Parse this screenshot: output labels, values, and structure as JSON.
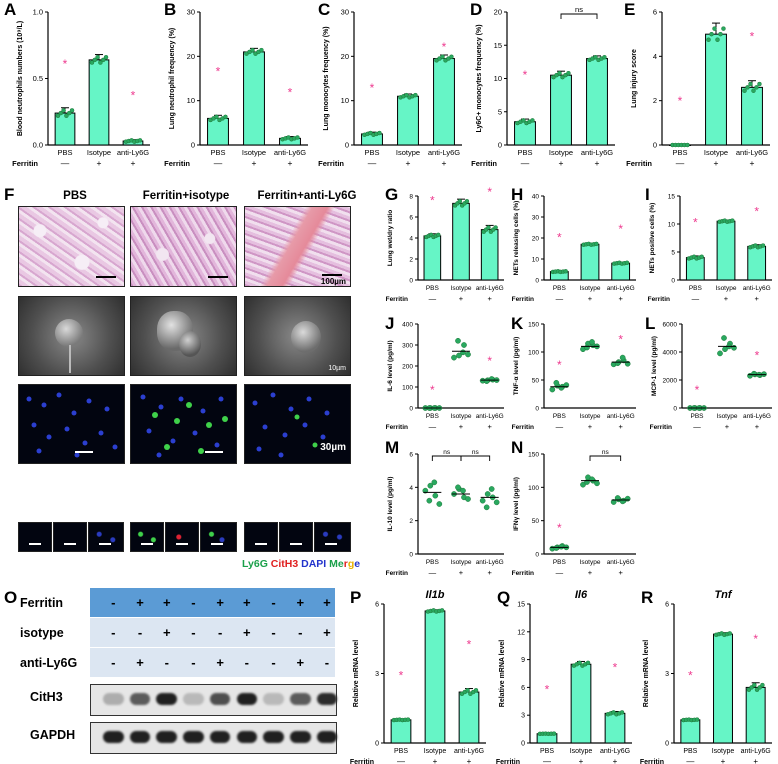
{
  "colors": {
    "bar": "#66f5c6",
    "dot": "#29a85f",
    "dotDark": "#1f7a3c",
    "star": "#ee3a8f",
    "ly6g": "#1aa04a",
    "cith3": "#e02020",
    "dapi": "#2233cc",
    "merge_m": "#e02020",
    "merge_e": "#e8b000",
    "merge_r": "#1aa04a",
    "merge_g": "#2233cc",
    "merge_e2": "#e8b000",
    "table_hdr": "#5b9bd5",
    "table_row": "#dce6f2"
  },
  "axis": {
    "ferritin_label": "Ferritin",
    "cats": [
      "PBS",
      "Isotype",
      "anti-Ly6G"
    ],
    "signs": [
      "—",
      "+",
      "+"
    ]
  },
  "panel_letters": [
    "A",
    "B",
    "C",
    "D",
    "E",
    "F",
    "G",
    "H",
    "I",
    "J",
    "K",
    "L",
    "M",
    "N",
    "O",
    "P",
    "Q",
    "R"
  ],
  "chart_data": [
    {
      "id": "A",
      "type": "bar",
      "ylabel": "Blood neutrophils numbers (10⁹/L)",
      "ylim": [
        0,
        1.0
      ],
      "yticks": [
        "0.0",
        "0.5",
        "1.0"
      ],
      "ytickv": [
        0,
        0.5,
        1.0
      ],
      "values": [
        0.24,
        0.64,
        0.03
      ],
      "err": [
        0.04,
        0.04,
        0.01
      ],
      "stars": [
        true,
        false,
        true
      ],
      "ns": []
    },
    {
      "id": "B",
      "type": "bar",
      "ylabel": "Lung neutrophil frequency (%)",
      "ylim": [
        0,
        30
      ],
      "yticks": [
        "0",
        "10",
        "20",
        "30"
      ],
      "ytickv": [
        0,
        10,
        20,
        30
      ],
      "values": [
        6,
        21,
        1.5
      ],
      "err": [
        0.7,
        0.8,
        0.4
      ],
      "stars": [
        true,
        false,
        true
      ],
      "ns": []
    },
    {
      "id": "C",
      "type": "bar",
      "ylabel": "Lung monocytes frequency (%)",
      "ylim": [
        0,
        30
      ],
      "yticks": [
        "0",
        "10",
        "20",
        "30"
      ],
      "ytickv": [
        0,
        10,
        20,
        30
      ],
      "values": [
        2.5,
        11,
        19.5
      ],
      "err": [
        0.4,
        0.5,
        0.8
      ],
      "stars": [
        true,
        false,
        true
      ],
      "ns": []
    },
    {
      "id": "D",
      "type": "bar",
      "ylabel": "Ly6C+ monocytes frequency (%)",
      "ylim": [
        0,
        20
      ],
      "yticks": [
        "0",
        "5",
        "10",
        "15",
        "20"
      ],
      "ytickv": [
        0,
        5,
        10,
        15,
        20
      ],
      "values": [
        3.5,
        10.5,
        13
      ],
      "err": [
        0.4,
        0.6,
        0.4
      ],
      "stars": [
        true,
        false,
        false
      ],
      "ns": [
        [
          1,
          2,
          "ns"
        ]
      ]
    },
    {
      "id": "E",
      "type": "bar",
      "ylabel": "Lung injury score",
      "ylim": [
        0,
        6
      ],
      "yticks": [
        "0",
        "2",
        "4",
        "6"
      ],
      "ytickv": [
        0,
        2,
        4,
        6
      ],
      "values": [
        0,
        5,
        2.6
      ],
      "err": [
        0,
        0.5,
        0.3
      ],
      "stars": [
        true,
        false,
        true
      ],
      "ns": []
    },
    {
      "id": "G",
      "type": "bar",
      "ylabel": "Lung wet/dry ratio",
      "ylim": [
        0,
        8
      ],
      "yticks": [
        "0",
        "2",
        "4",
        "6",
        "8"
      ],
      "ytickv": [
        0,
        2,
        4,
        6,
        8
      ],
      "values": [
        4.2,
        7.3,
        4.8
      ],
      "err": [
        0.2,
        0.4,
        0.4
      ],
      "stars": [
        true,
        false,
        true
      ],
      "ns": []
    },
    {
      "id": "H",
      "type": "bar",
      "ylabel": "NETs releasing cells (%)",
      "ylim": [
        0,
        40
      ],
      "yticks": [
        "0",
        "10",
        "20",
        "30",
        "40"
      ],
      "ytickv": [
        0,
        10,
        20,
        30,
        40
      ],
      "values": [
        4,
        17,
        8
      ],
      "err": [
        0.3,
        0.4,
        0.4
      ],
      "stars": [
        true,
        false,
        true
      ],
      "ns": []
    },
    {
      "id": "I",
      "type": "bar",
      "ylabel": "NETs positive cells (%)",
      "ylim": [
        0,
        15
      ],
      "yticks": [
        "0",
        "5",
        "10",
        "15"
      ],
      "ytickv": [
        0,
        5,
        10,
        15
      ],
      "values": [
        4,
        10.5,
        6
      ],
      "err": [
        0.3,
        0.2,
        0.3
      ],
      "stars": [
        true,
        false,
        true
      ],
      "ns": []
    },
    {
      "id": "J",
      "type": "dot",
      "ylabel": "IL-6 level (pg/ml)",
      "ylim": [
        0,
        400
      ],
      "yticks": [
        "0",
        "100",
        "200",
        "300",
        "400"
      ],
      "ytickv": [
        0,
        100,
        200,
        300,
        400
      ],
      "points": [
        [
          0,
          0,
          0,
          0,
          0,
          0
        ],
        [
          240,
          250,
          300,
          320,
          265,
          255
        ],
        [
          130,
          132,
          135,
          128,
          138,
          133
        ]
      ],
      "means": [
        0,
        270,
        133
      ],
      "stars": [
        true,
        false,
        true
      ],
      "ns": []
    },
    {
      "id": "K",
      "type": "dot",
      "ylabel": "TNF-α level (pg/ml)",
      "ylim": [
        0,
        150
      ],
      "yticks": [
        "0",
        "50",
        "100",
        "150"
      ],
      "ytickv": [
        0,
        50,
        100,
        150
      ],
      "points": [
        [
          33,
          40,
          38,
          45,
          36,
          41
        ],
        [
          105,
          115,
          112,
          108,
          118,
          110
        ],
        [
          78,
          82,
          85,
          80,
          90,
          79
        ]
      ],
      "means": [
        38,
        110,
        82
      ],
      "stars": [
        true,
        false,
        true
      ],
      "ns": []
    },
    {
      "id": "L",
      "type": "dot",
      "ylabel": "MCP-1 level (pg/ml)",
      "ylim": [
        0,
        6000
      ],
      "yticks": [
        "0",
        "2000",
        "4000",
        "6000"
      ],
      "ytickv": [
        0,
        2000,
        4000,
        6000
      ],
      "points": [
        [
          0,
          0,
          0,
          0,
          0,
          0
        ],
        [
          3900,
          4200,
          4600,
          5000,
          4400,
          4300
        ],
        [
          2300,
          2400,
          2350,
          2450,
          2380,
          2420
        ]
      ],
      "means": [
        0,
        4400,
        2380
      ],
      "stars": [
        true,
        false,
        true
      ],
      "ns": []
    },
    {
      "id": "M",
      "type": "dot",
      "ylabel": "IL-10 level (pg/ml)",
      "ylim": [
        0,
        6
      ],
      "yticks": [
        "0",
        "2",
        "4",
        "6"
      ],
      "ytickv": [
        0,
        2,
        4,
        6
      ],
      "points": [
        [
          3.8,
          4.1,
          3.5,
          3.2,
          4.3,
          3.0
        ],
        [
          3.6,
          3.9,
          3.4,
          4.0,
          3.8,
          3.3
        ],
        [
          3.2,
          3.6,
          3.4,
          2.8,
          3.9,
          3.1
        ]
      ],
      "means": [
        3.7,
        3.6,
        3.4
      ],
      "stars": [
        false,
        false,
        false
      ],
      "ns": [
        [
          0,
          1,
          "ns"
        ],
        [
          1,
          2,
          "ns"
        ]
      ]
    },
    {
      "id": "N",
      "type": "dot",
      "ylabel": "IFNγ level (pg/ml)",
      "ylim": [
        0,
        150
      ],
      "yticks": [
        "0",
        "50",
        "100",
        "150"
      ],
      "ytickv": [
        0,
        50,
        100,
        150
      ],
      "points": [
        [
          8,
          10,
          12,
          9,
          11,
          10
        ],
        [
          104,
          115,
          110,
          108,
          112,
          106
        ],
        [
          78,
          82,
          80,
          84,
          79,
          83
        ]
      ],
      "means": [
        10,
        110,
        81
      ],
      "stars": [
        true,
        false,
        false
      ],
      "ns": [
        [
          1,
          2,
          "ns"
        ]
      ]
    },
    {
      "id": "P",
      "type": "bar",
      "title": "Il1b",
      "ylabel": "Relative mRNA level",
      "ylim": [
        0,
        6
      ],
      "yticks": [
        "0",
        "3",
        "6"
      ],
      "ytickv": [
        0,
        3,
        6
      ],
      "values": [
        1,
        5.7,
        2.2
      ],
      "err": [
        0.02,
        0.05,
        0.15
      ],
      "stars": [
        true,
        false,
        true
      ],
      "ns": []
    },
    {
      "id": "Q",
      "type": "bar",
      "title": "Il6",
      "ylabel": "Relative mRNA level",
      "ylim": [
        0,
        15
      ],
      "yticks": [
        "0",
        "3",
        "6",
        "9",
        "12",
        "15"
      ],
      "ytickv": [
        0,
        3,
        6,
        9,
        12,
        15
      ],
      "values": [
        1,
        8.5,
        3.2
      ],
      "err": [
        0.02,
        0.3,
        0.2
      ],
      "stars": [
        true,
        false,
        true
      ],
      "ns": []
    },
    {
      "id": "R",
      "type": "bar",
      "title": "Tnf",
      "ylabel": "Relative mRNA level",
      "ylim": [
        0,
        6
      ],
      "yticks": [
        "0",
        "3",
        "6"
      ],
      "ytickv": [
        0,
        3,
        6
      ],
      "values": [
        1,
        4.7,
        2.4
      ],
      "err": [
        0.02,
        0.06,
        0.2
      ],
      "stars": [
        true,
        false,
        true
      ],
      "ns": []
    }
  ],
  "micro": {
    "headers": [
      "PBS",
      "Ferritin+isotype",
      "Ferritin+anti-Ly6G"
    ],
    "scale_he": "100µm",
    "scale_sem": "10µm",
    "scale_if": "30µm",
    "legend": {
      "ly6g": "Ly6G",
      "cith3": "CitH3",
      "dapi": "DAPI",
      "merge": "Merge"
    }
  },
  "blot": {
    "rows": [
      {
        "label": "Ferritin",
        "cells": [
          "-",
          "+",
          "+",
          "-",
          "+",
          "+",
          "-",
          "+",
          "+"
        ]
      },
      {
        "label": "isotype",
        "cells": [
          "-",
          "-",
          "+",
          "-",
          "-",
          "+",
          "-",
          "-",
          "+"
        ]
      },
      {
        "label": "anti-Ly6G",
        "cells": [
          "-",
          "+",
          "-",
          "-",
          "+",
          "-",
          "-",
          "+",
          "-"
        ]
      }
    ],
    "bands": [
      {
        "label": "CitH3",
        "intensity": [
          0.35,
          0.7,
          0.95,
          0.3,
          0.75,
          0.95,
          0.3,
          0.7,
          0.9
        ]
      },
      {
        "label": "GAPDH",
        "intensity": [
          0.95,
          0.95,
          0.95,
          0.95,
          0.95,
          0.95,
          0.95,
          0.95,
          0.95
        ]
      }
    ]
  }
}
